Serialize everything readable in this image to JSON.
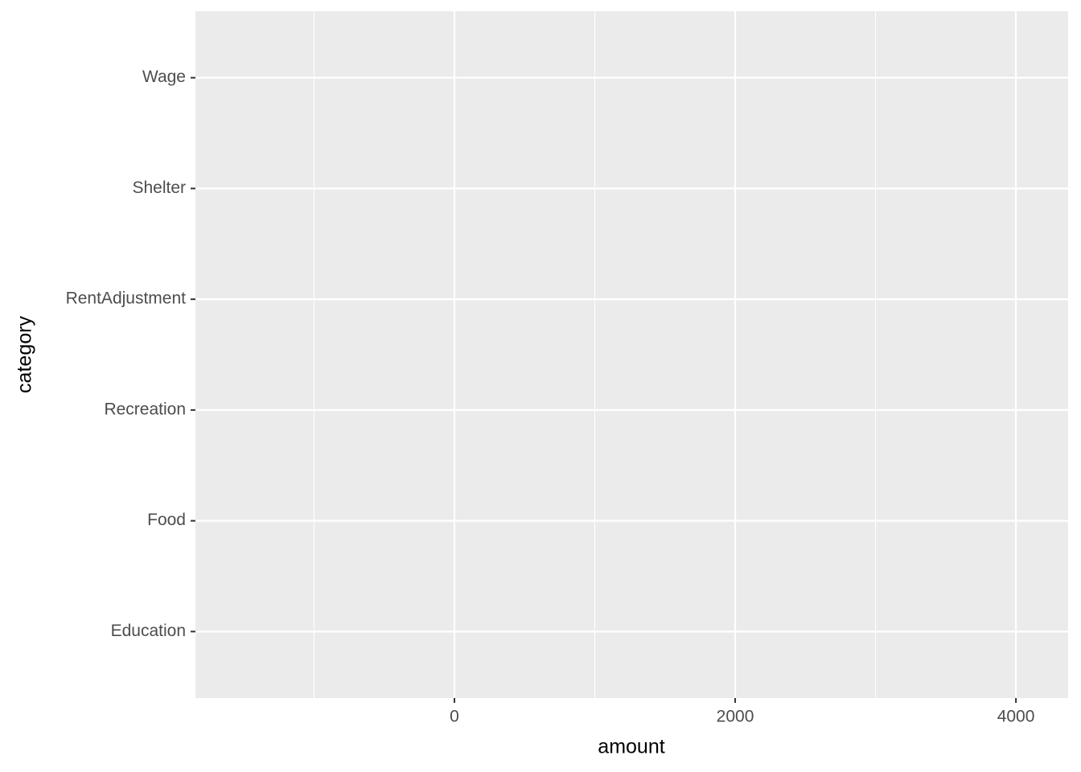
{
  "chart_data": {
    "type": "bar",
    "orientation": "horizontal",
    "categories": [
      "Education",
      "Food",
      "Recreation",
      "RentAdjustment",
      "Shelter",
      "Wage"
    ],
    "xlabel": "amount",
    "ylabel": "category",
    "xlim": [
      -1845,
      4372
    ],
    "xticks": [
      0,
      2000,
      4000
    ],
    "xminor": [
      -1000,
      1000,
      3000
    ],
    "panel_color": "#ebebeb",
    "grid_color": "#ffffff",
    "grid": true
  }
}
